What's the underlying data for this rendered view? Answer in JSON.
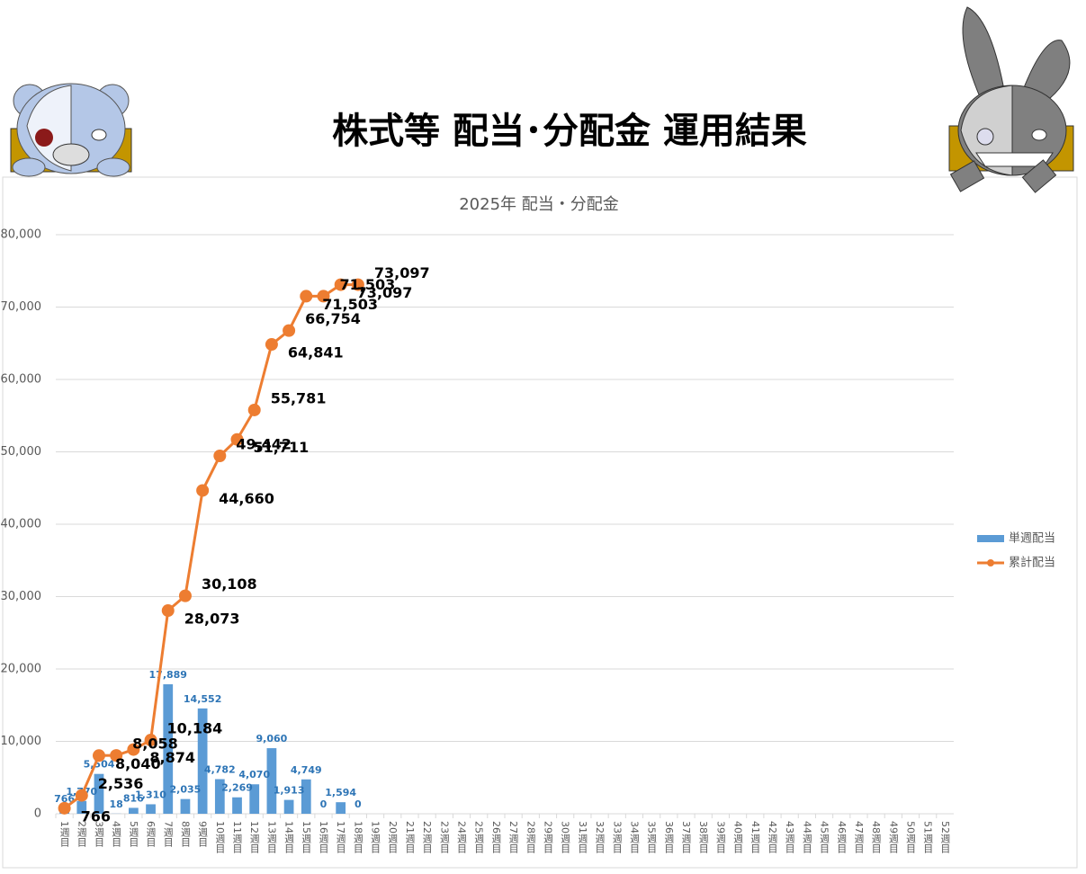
{
  "page_title": "株式等 配当･分配金 運用結果",
  "chart_data": {
    "type": "bar",
    "title": "2025年 配当・分配金",
    "categories": [
      "1週目",
      "2週目",
      "3週目",
      "4週目",
      "5週目",
      "6週目",
      "7週目",
      "8週目",
      "9週目",
      "10週目",
      "11週目",
      "12週目",
      "13週目",
      "14週目",
      "15週目",
      "16週目",
      "17週目",
      "18週目",
      "19週目",
      "20週目",
      "21週目",
      "22週目",
      "23週目",
      "24週目",
      "25週目",
      "26週目",
      "27週目",
      "28週目",
      "29週目",
      "30週目",
      "31週目",
      "32週目",
      "33週目",
      "34週目",
      "35週目",
      "36週目",
      "37週目",
      "38週目",
      "39週目",
      "40週目",
      "41週目",
      "42週目",
      "43週目",
      "44週目",
      "45週目",
      "46週目",
      "47週目",
      "48週目",
      "49週目",
      "50週目",
      "51週目",
      "52週目"
    ],
    "series": [
      {
        "name": "単週配当",
        "type": "bar",
        "color": "#5b9bd5",
        "label_color": "#2e75b6",
        "values": [
          766,
          1770,
          5504,
          18,
          816,
          1310,
          17889,
          2035,
          14552,
          4782,
          2269,
          4070,
          9060,
          1913,
          4749,
          0,
          1594,
          0,
          null,
          null,
          null,
          null,
          null,
          null,
          null,
          null,
          null,
          null,
          null,
          null,
          null,
          null,
          null,
          null,
          null,
          null,
          null,
          null,
          null,
          null,
          null,
          null,
          null,
          null,
          null,
          null,
          null,
          null,
          null,
          null,
          null,
          null
        ],
        "value_labels": [
          "766",
          "1,770",
          "5,504",
          "18",
          "816",
          "1,310",
          "17,889",
          "2,035",
          "14,552",
          "4,782",
          "2,269",
          "4,070",
          "9,060",
          "1,913",
          "4,749",
          "0",
          "1,594",
          "0",
          null,
          null,
          null,
          null,
          null,
          null,
          null,
          null,
          null,
          null,
          null,
          null,
          null,
          null,
          null,
          null,
          null,
          null,
          null,
          null,
          null,
          null,
          null,
          null,
          null,
          null,
          null,
          null,
          null,
          null,
          null,
          null,
          null,
          null
        ]
      },
      {
        "name": "累計配当",
        "type": "line",
        "color": "#ed7d31",
        "label_color": "#000000",
        "values": [
          766,
          2536,
          8040,
          8058,
          8874,
          10184,
          28073,
          30108,
          44660,
          49442,
          51711,
          55781,
          64841,
          66754,
          71503,
          71503,
          73097,
          73097,
          null,
          null,
          null,
          null,
          null,
          null,
          null,
          null,
          null,
          null,
          null,
          null,
          null,
          null,
          null,
          null,
          null,
          null,
          null,
          null,
          null,
          null,
          null,
          null,
          null,
          null,
          null,
          null,
          null,
          null,
          null,
          null,
          null,
          null
        ],
        "value_labels": [
          "766",
          "2,536",
          "8,040",
          "8,058",
          "8,874",
          "10,184",
          "28,073",
          "30,108",
          "44,660",
          "49,442",
          "51,711",
          "55,781",
          "64,841",
          "66,754",
          "71,503",
          "71,503",
          "73,097",
          "73,097",
          null,
          null,
          null,
          null,
          null,
          null,
          null,
          null,
          null,
          null,
          null,
          null,
          null,
          null,
          null,
          null,
          null,
          null,
          null,
          null,
          null,
          null,
          null,
          null,
          null,
          null,
          null,
          null,
          null,
          null,
          null,
          null,
          null,
          null
        ]
      }
    ],
    "ylim": [
      0,
      80000
    ],
    "yticks": [
      {
        "value": 0,
        "label": "0"
      },
      {
        "value": 10000,
        "label": "10,000"
      },
      {
        "value": 20000,
        "label": "20,000"
      },
      {
        "value": 30000,
        "label": "30,000"
      },
      {
        "value": 40000,
        "label": "40,000"
      },
      {
        "value": 50000,
        "label": "50,000"
      },
      {
        "value": 60000,
        "label": "60,000"
      },
      {
        "value": 70000,
        "label": "70,000"
      },
      {
        "value": 80000,
        "label": "80,000"
      }
    ],
    "grid": true,
    "legend": "right"
  }
}
